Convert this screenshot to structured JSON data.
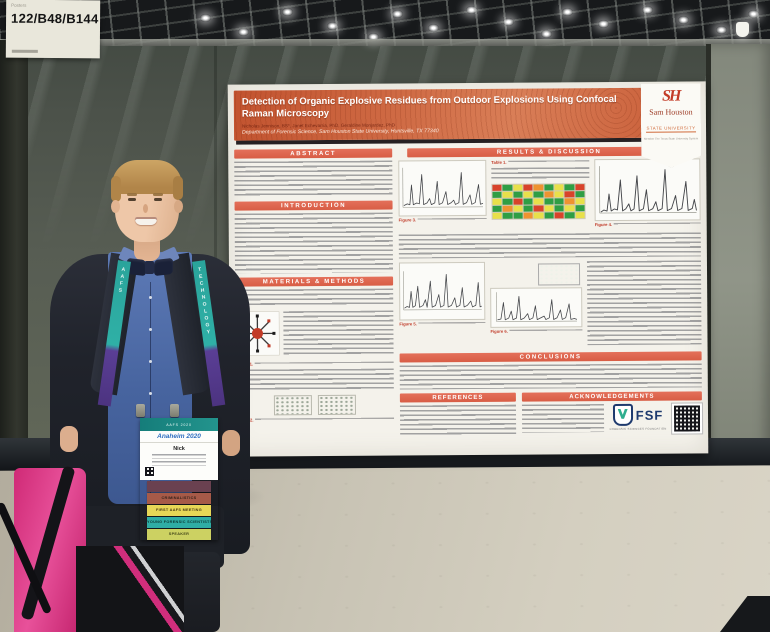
{
  "sign": {
    "top": "Posters",
    "code": "122/B48/B144"
  },
  "poster": {
    "title": "Detection of Organic Explosive Residues from Outdoor Explosions Using Confocal Raman Microscopy",
    "authors": "Nicholas Jennison, BS*, Janet Echevarria, PhD, Geraldine Monjardez, PhD",
    "affiliation": "Department of Forensic Science, Sam Houston State University, Huntsville, TX 77340",
    "logo": {
      "monogram": "SH",
      "name": "Sam Houston",
      "subname": "STATE UNIVERSITY",
      "tagline": "Member The Texas State University System"
    },
    "sections": {
      "abstract": "ABSTRACT",
      "introduction": "INTRODUCTION",
      "methods": "MATERIALS & METHODS",
      "results": "RESULTS & DISCUSSION",
      "conclusions": "CONCLUSIONS",
      "references": "REFERENCES",
      "acknowledgements": "ACKNOWLEDGEMENTS"
    },
    "labels": {
      "table1": "Table 1.",
      "fig1": "Figure 1.",
      "fig2": "Figure 2.",
      "fig3": "Figure 3.",
      "fig4": "Figure 4.",
      "fig5": "Figure 5.",
      "fig6": "Figure 6."
    },
    "fsf": {
      "name": "FSF",
      "tagline": "FORENSIC SCIENCES FOUNDATION"
    },
    "accent_color": "#dd6a52",
    "banner_color": "#c8573a",
    "heatmap": {
      "palette": {
        "G": "#2f9e44",
        "Y": "#e8e04a",
        "O": "#ee9330",
        "R": "#d8432a"
      },
      "rows": [
        "RGYROGYGR",
        "GYGYGOYRG",
        "YGRGYGGOY",
        "GOYGRYGYG",
        "YGGOYGRGY"
      ]
    }
  },
  "attendee": {
    "lanyard": {
      "left": "AAFS",
      "right": "TECHNOLOGY",
      "teal": "#2aa49b",
      "purple": "#5a3e95"
    },
    "badge": {
      "header": "AAFS 2020",
      "logo_text": "Anaheim 2020",
      "name": "Nick"
    },
    "ribbons": [
      {
        "label": "",
        "bg": "#6a4150",
        "fg": "#d9b87a"
      },
      {
        "label": "CRIMINALISTICS",
        "bg": "#a65a48",
        "fg": "#33211a"
      },
      {
        "label": "FIRST AAFS MEETING",
        "bg": "#e7d757",
        "fg": "#4a3c14"
      },
      {
        "label": "YOUNG FORENSIC SCIENTISTS",
        "bg": "#2fada5",
        "fg": "#0e3a36"
      },
      {
        "label": "SPEAKER",
        "bg": "#ccd162",
        "fg": "#45491a"
      }
    ]
  }
}
